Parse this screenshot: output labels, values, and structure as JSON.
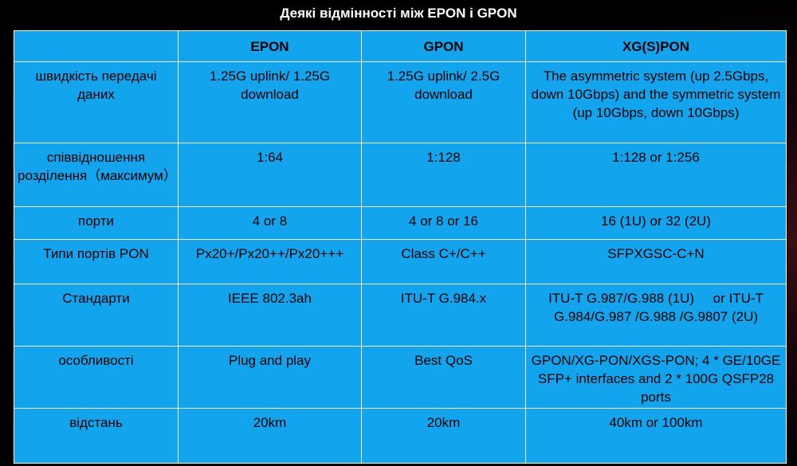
{
  "title": "Деякі відмінності між EPON і GPON",
  "table": {
    "headers": [
      "",
      "EPON",
      "GPON",
      "XG(S)PON"
    ],
    "rows": [
      [
        "швидкість передачі даних",
        "1.25G uplink/ 1.25G download",
        "1.25G uplink/ 2.5G download",
        "The asymmetric system (up 2.5Gbps, down 10Gbps) and the symmetric system (up 10Gbps, down 10Gbps)"
      ],
      [
        "співвідношення розділення（максимум）",
        "1:64",
        "1:128",
        "1:128 or 1:256"
      ],
      [
        "порти",
        "4 or 8",
        "4 or 8 or 16",
        "16 (1U) or 32 (2U)"
      ],
      [
        "Типи портів PON",
        "Px20+/Px20++/Px20+++",
        "Class C+/C++",
        "SFPXGSC-C+N"
      ],
      [
        "Стандарти",
        "IEEE 802.3ah",
        "ITU-T G.984.x",
        "ITU-T G.987/G.988 (1U)     or ITU-T G.984/G.987 /G.988 /G.9807 (2U)"
      ],
      [
        "особливості",
        "Plug and play",
        "Best QoS",
        "GPON/XG-PON/XGS-PON; 4 * GE/10GE SFP+ interfaces and 2 * 100G QSFP28 ports"
      ],
      [
        "відстань",
        "20km",
        "20km",
        "40km or 100km"
      ]
    ]
  },
  "colors": {
    "cell_background": "#12a5ee",
    "border": "#ffffff",
    "title_text": "#ffffff",
    "cell_text": "#000000"
  }
}
